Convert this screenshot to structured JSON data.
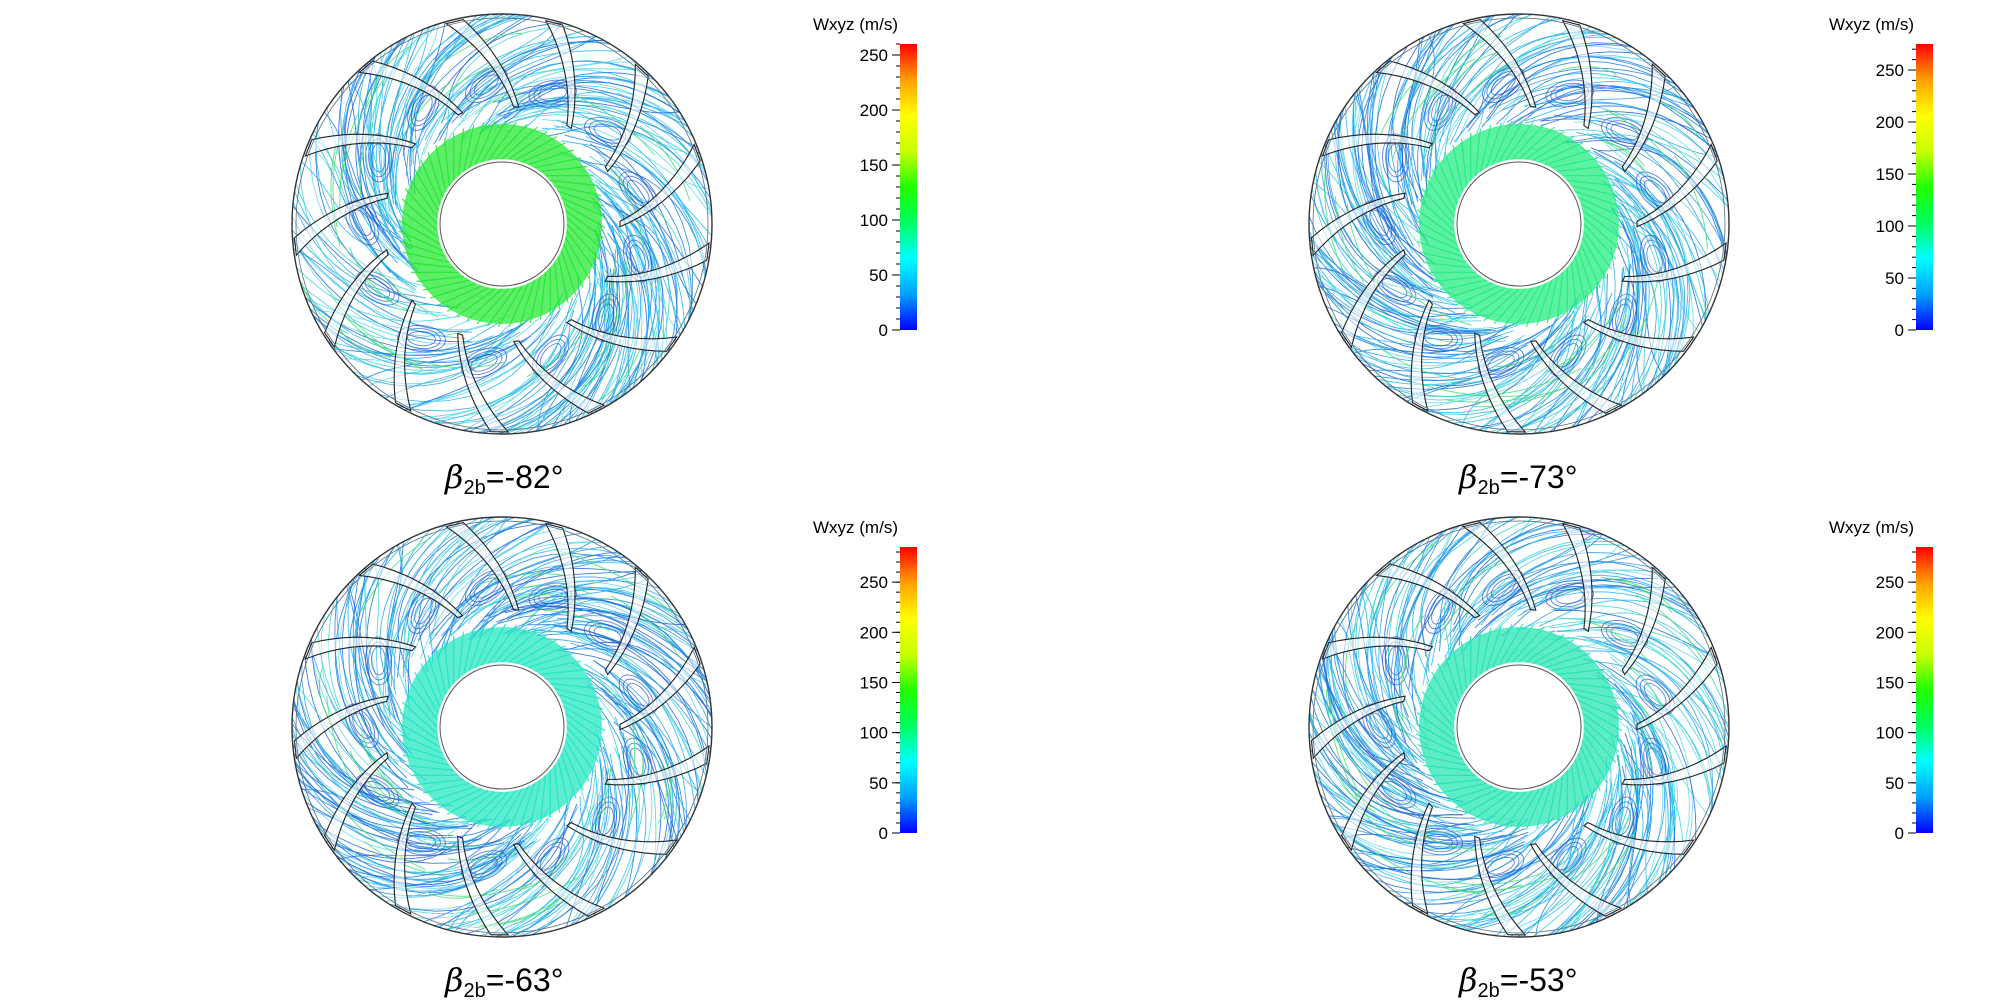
{
  "panels": [
    {
      "caption": {
        "symbol": "β",
        "subscript": "2b",
        "value": "=-82°"
      },
      "colorbar": {
        "title": "Wxyz (m/s)",
        "min": 0,
        "max": 260,
        "ticks": [
          "0",
          "50",
          "100",
          "150",
          "200",
          "250"
        ],
        "tick_values": [
          0,
          50,
          100,
          150,
          200,
          250
        ]
      },
      "hub_band_color": "#22e830"
    },
    {
      "caption": {
        "symbol": "β",
        "subscript": "2b",
        "value": "=-73°"
      },
      "colorbar": {
        "title": "Wxyz (m/s)",
        "min": 0,
        "max": 275,
        "ticks": [
          "0",
          "50",
          "100",
          "150",
          "200",
          "250"
        ],
        "tick_values": [
          0,
          50,
          100,
          150,
          200,
          250
        ]
      },
      "hub_band_color": "#20ec80"
    },
    {
      "caption": {
        "symbol": "β",
        "subscript": "2b",
        "value": "=-63°"
      },
      "colorbar": {
        "title": "Wxyz (m/s)",
        "min": 0,
        "max": 285,
        "ticks": [
          "0",
          "50",
          "100",
          "150",
          "200",
          "250"
        ],
        "tick_values": [
          0,
          50,
          100,
          150,
          200,
          250
        ]
      },
      "hub_band_color": "#20e6c0"
    },
    {
      "caption": {
        "symbol": "β",
        "subscript": "2b",
        "value": "=-53°"
      },
      "colorbar": {
        "title": "Wxyz (m/s)",
        "min": 0,
        "max": 285,
        "ticks": [
          "0",
          "50",
          "100",
          "150",
          "200",
          "250"
        ],
        "tick_values": [
          0,
          50,
          100,
          150,
          200,
          250
        ]
      },
      "hub_band_color": "#22e4b0"
    }
  ],
  "colormap": [
    "#0000ff",
    "#00a0ff",
    "#00ffff",
    "#00ff60",
    "#22ff00",
    "#c8ff00",
    "#ffff00",
    "#ffa000",
    "#ff0000"
  ],
  "streamline_colors": [
    "#1a7fe0",
    "#24b6f0",
    "#5fd8f0",
    "#2f9fe8",
    "#39d3d8",
    "#1c66d8"
  ],
  "blade_count": 13
}
